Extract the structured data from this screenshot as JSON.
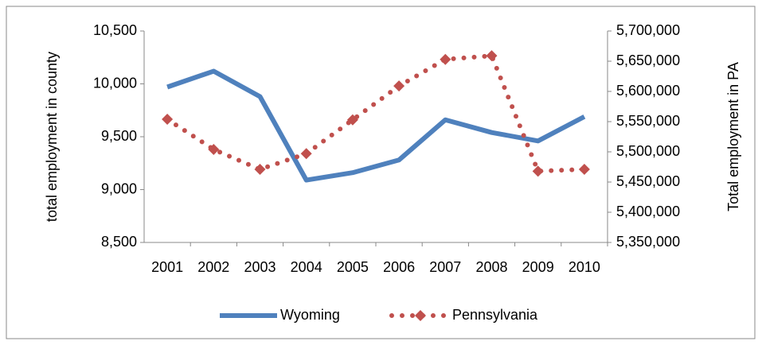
{
  "chart_data": {
    "type": "line",
    "categories": [
      "2001",
      "2002",
      "2003",
      "2004",
      "2005",
      "2006",
      "2007",
      "2008",
      "2009",
      "2010"
    ],
    "y_label": "total employment in county",
    "y2_label": "Total employment in PA",
    "ylim": [
      8500,
      10500
    ],
    "yticks": [
      {
        "value": 8500,
        "label": "8,500"
      },
      {
        "value": 9000,
        "label": "9,000"
      },
      {
        "value": 9500,
        "label": "9,500"
      },
      {
        "value": 10000,
        "label": "10,000"
      },
      {
        "value": 10500,
        "label": "10,500"
      }
    ],
    "y2lim": [
      5350000,
      5700000
    ],
    "y2ticks": [
      {
        "value": 5350000,
        "label": "5,350,000"
      },
      {
        "value": 5400000,
        "label": "5,400,000"
      },
      {
        "value": 5450000,
        "label": "5,450,000"
      },
      {
        "value": 5500000,
        "label": "5,500,000"
      },
      {
        "value": 5550000,
        "label": "5,550,000"
      },
      {
        "value": 5600000,
        "label": "5,600,000"
      },
      {
        "value": 5650000,
        "label": "5,650,000"
      },
      {
        "value": 5700000,
        "label": "5,700,000"
      }
    ],
    "legend": "bottom",
    "series": [
      {
        "name": "Wyoming",
        "color": "#4f81bd",
        "values": [
          9970,
          10120,
          9880,
          9090,
          9160,
          9280,
          9660,
          9540,
          9460,
          9690
        ]
      },
      {
        "name": "Pennsylvania",
        "color": "#c0504d",
        "axis": "y2",
        "values": [
          5554000,
          5504000,
          5471000,
          5497000,
          5553000,
          5609000,
          5653000,
          5659000,
          5468000,
          5471000
        ]
      }
    ]
  }
}
